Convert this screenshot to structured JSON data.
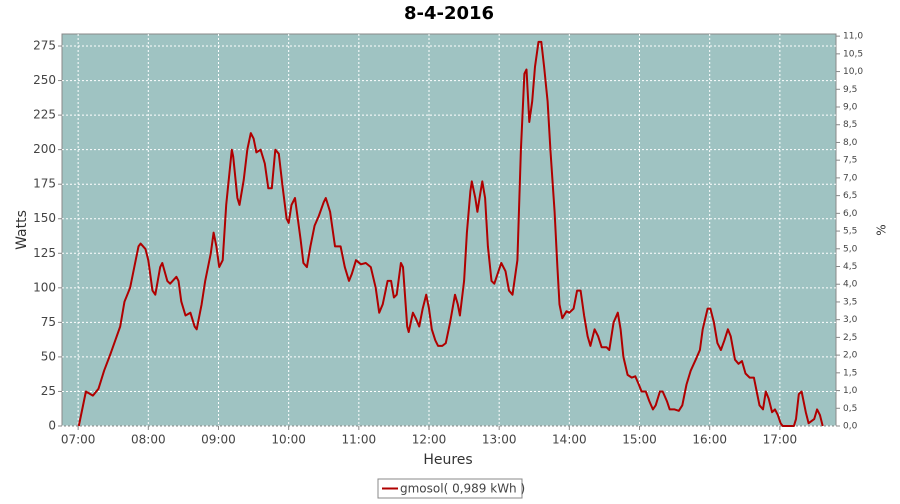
{
  "chart_data": {
    "type": "line",
    "title": "8-4-2016",
    "xlabel": "Heures",
    "ylabel": "Watts",
    "y2label": "%",
    "x": [
      7.01,
      7.11,
      7.21,
      7.29,
      7.37,
      7.46,
      7.53,
      7.6,
      7.66,
      7.74,
      7.8,
      7.86,
      7.89,
      7.96,
      8.0,
      8.06,
      8.1,
      8.17,
      8.2,
      8.27,
      8.31,
      8.4,
      8.43,
      8.47,
      8.53,
      8.6,
      8.66,
      8.69,
      8.76,
      8.81,
      8.89,
      8.93,
      8.97,
      9.01,
      9.06,
      9.11,
      9.19,
      9.21,
      9.27,
      9.3,
      9.36,
      9.41,
      9.46,
      9.5,
      9.54,
      9.6,
      9.66,
      9.71,
      9.76,
      9.81,
      9.86,
      9.91,
      9.97,
      10.0,
      10.04,
      10.09,
      10.13,
      10.17,
      10.21,
      10.26,
      10.31,
      10.37,
      10.43,
      10.5,
      10.53,
      10.59,
      10.66,
      10.74,
      10.8,
      10.86,
      10.9,
      10.96,
      11.03,
      11.1,
      11.17,
      11.24,
      11.29,
      11.34,
      11.41,
      11.46,
      11.5,
      11.54,
      11.6,
      11.63,
      11.69,
      11.71,
      11.77,
      11.81,
      11.86,
      11.91,
      11.96,
      12.0,
      12.04,
      12.09,
      12.13,
      12.19,
      12.24,
      12.3,
      12.37,
      12.41,
      12.44,
      12.5,
      12.54,
      12.59,
      12.61,
      12.66,
      12.69,
      12.73,
      12.76,
      12.8,
      12.84,
      12.89,
      12.93,
      12.99,
      13.03,
      13.09,
      13.14,
      13.19,
      13.26,
      13.31,
      13.36,
      13.39,
      13.43,
      13.47,
      13.51,
      13.56,
      13.6,
      13.64,
      13.69,
      13.73,
      13.79,
      13.83,
      13.86,
      13.9,
      13.96,
      14.0,
      14.06,
      14.11,
      14.16,
      14.21,
      14.26,
      14.3,
      14.36,
      14.41,
      14.46,
      14.53,
      14.57,
      14.63,
      14.69,
      14.73,
      14.77,
      14.83,
      14.89,
      14.94,
      14.99,
      15.03,
      15.09,
      15.14,
      15.19,
      15.23,
      15.29,
      15.33,
      15.39,
      15.43,
      15.5,
      15.56,
      15.61,
      15.67,
      15.73,
      15.8,
      15.86,
      15.9,
      15.97,
      16.01,
      16.06,
      16.11,
      16.16,
      16.21,
      16.26,
      16.3,
      16.36,
      16.41,
      16.46,
      16.51,
      16.57,
      16.63,
      16.67,
      16.71,
      16.76,
      16.8,
      16.84,
      16.89,
      16.93,
      16.97,
      17.01,
      17.04,
      17.2,
      17.23,
      17.27,
      17.31,
      17.37,
      17.41,
      17.49,
      17.53,
      17.57,
      17.61
    ],
    "series": [
      {
        "name": "gmosol( 0,989 kWh )",
        "color": "#b00000",
        "values": [
          0,
          25,
          22,
          27,
          40,
          52,
          62,
          72,
          90,
          100,
          115,
          130,
          132,
          128,
          120,
          98,
          95,
          115,
          118,
          105,
          103,
          108,
          105,
          90,
          80,
          82,
          72,
          70,
          88,
          105,
          125,
          140,
          130,
          115,
          120,
          160,
          200,
          195,
          165,
          160,
          178,
          200,
          212,
          208,
          198,
          200,
          190,
          172,
          172,
          200,
          197,
          175,
          150,
          147,
          160,
          165,
          150,
          135,
          118,
          115,
          130,
          145,
          152,
          162,
          165,
          155,
          130,
          130,
          115,
          105,
          110,
          120,
          117,
          118,
          115,
          100,
          82,
          88,
          105,
          105,
          93,
          95,
          118,
          115,
          72,
          68,
          82,
          78,
          72,
          85,
          95,
          85,
          70,
          62,
          58,
          58,
          60,
          75,
          95,
          88,
          80,
          105,
          140,
          170,
          177,
          165,
          155,
          168,
          177,
          165,
          130,
          105,
          103,
          112,
          118,
          112,
          98,
          95,
          120,
          200,
          255,
          258,
          220,
          235,
          260,
          278,
          278,
          260,
          235,
          200,
          155,
          115,
          88,
          78,
          83,
          82,
          85,
          98,
          98,
          80,
          65,
          58,
          70,
          65,
          57,
          57,
          55,
          75,
          82,
          70,
          50,
          37,
          35,
          36,
          30,
          25,
          25,
          18,
          12,
          15,
          25,
          25,
          18,
          12,
          12,
          11,
          15,
          30,
          40,
          48,
          55,
          70,
          85,
          85,
          75,
          60,
          55,
          62,
          70,
          65,
          48,
          45,
          47,
          38,
          35,
          35,
          25,
          15,
          12,
          25,
          20,
          10,
          12,
          8,
          2,
          0,
          0,
          5,
          23,
          25,
          10,
          2,
          5,
          12,
          8,
          0
        ]
      }
    ],
    "xlim": [
      6.77,
      17.8
    ],
    "xticks": [
      {
        "value": 7,
        "label": "07:00"
      },
      {
        "value": 8,
        "label": "08:00"
      },
      {
        "value": 9,
        "label": "09:00"
      },
      {
        "value": 10,
        "label": "10:00"
      },
      {
        "value": 11,
        "label": "11:00"
      },
      {
        "value": 12,
        "label": "12:00"
      },
      {
        "value": 13,
        "label": "13:00"
      },
      {
        "value": 14,
        "label": "14:00"
      },
      {
        "value": 15,
        "label": "15:00"
      },
      {
        "value": 16,
        "label": "16:00"
      },
      {
        "value": 17,
        "label": "17:00"
      }
    ],
    "ylim": [
      0,
      283.7
    ],
    "yticks": [
      0,
      25,
      50,
      75,
      100,
      125,
      150,
      175,
      200,
      225,
      250,
      275
    ],
    "y2lim": [
      0,
      11.06
    ],
    "y2ticks": [
      {
        "value": 0,
        "label": "0,0"
      },
      {
        "value": 0.5,
        "label": "0,5"
      },
      {
        "value": 1,
        "label": "1,0"
      },
      {
        "value": 1.5,
        "label": "1,5"
      },
      {
        "value": 2,
        "label": "2,0"
      },
      {
        "value": 2.5,
        "label": "2,5"
      },
      {
        "value": 3,
        "label": "3,0"
      },
      {
        "value": 3.5,
        "label": "3,5"
      },
      {
        "value": 4,
        "label": "4,0"
      },
      {
        "value": 4.5,
        "label": "4,5"
      },
      {
        "value": 5,
        "label": "5,0"
      },
      {
        "value": 5.5,
        "label": "5,5"
      },
      {
        "value": 6,
        "label": "6,0"
      },
      {
        "value": 6.5,
        "label": "6,5"
      },
      {
        "value": 7,
        "label": "7,0"
      },
      {
        "value": 7.5,
        "label": "7,5"
      },
      {
        "value": 8,
        "label": "8,0"
      },
      {
        "value": 8.5,
        "label": "8,5"
      },
      {
        "value": 9,
        "label": "9,0"
      },
      {
        "value": 9.5,
        "label": "9,5"
      },
      {
        "value": 10,
        "label": "10,0"
      },
      {
        "value": 10.5,
        "label": "10,5"
      },
      {
        "value": 11,
        "label": "11,0"
      }
    ],
    "grid": true,
    "legend": "bottom",
    "plot_background": "#9fc3c2"
  }
}
